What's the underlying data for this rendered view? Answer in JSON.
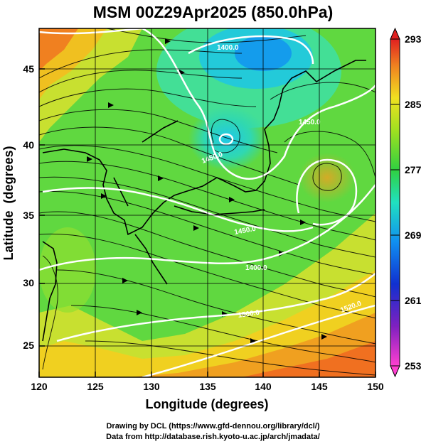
{
  "title": "MSM 00Z29Apr2025 (850.0hPa)",
  "x_axis": {
    "label": "Longitude (degrees)",
    "range": [
      120,
      150
    ],
    "ticks": [
      "120",
      "125",
      "130",
      "135",
      "140",
      "145",
      "150"
    ]
  },
  "y_axis": {
    "label": "Latitude  (degrees)",
    "range": [
      22.4,
      47.6
    ],
    "ticks": [
      "25",
      "30",
      "35",
      "40",
      "45"
    ]
  },
  "colorbar": {
    "min": 253,
    "max": 293,
    "labels": [
      "293",
      "285",
      "277",
      "269",
      "261",
      "253"
    ]
  },
  "contour_labels": [
    "1400.0",
    "1450.0",
    "1450.0",
    "1400.0",
    "1450.0",
    "1500.0",
    "1520.0"
  ],
  "credits": {
    "line1": "Drawing by DCL (https://www.gfd-dennou.org/library/dcl/)",
    "line2": "Data from http://database.rish.kyoto-u.ac.jp/arch/jmadata/"
  }
}
